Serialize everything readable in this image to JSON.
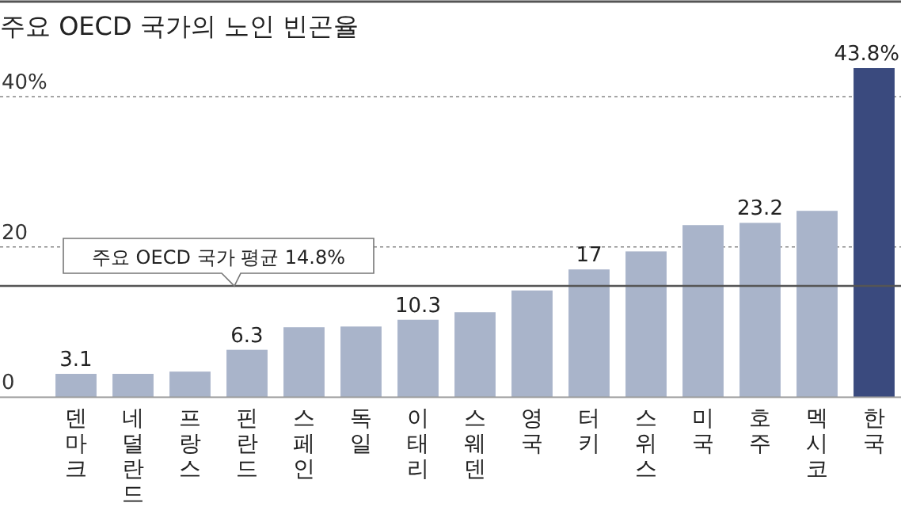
{
  "chart_data": {
    "type": "bar",
    "title": "주요 OECD 국가의 노인 빈곤율",
    "categories": [
      "덴마크",
      "네덜란드",
      "프랑스",
      "핀란드",
      "스페인",
      "독일",
      "이태리",
      "스웨덴",
      "영국",
      "터키",
      "스위스",
      "미국",
      "호주",
      "멕시코",
      "한국"
    ],
    "values": [
      3.1,
      3.1,
      3.4,
      6.3,
      9.3,
      9.4,
      10.3,
      11.3,
      14.2,
      17,
      19.4,
      22.9,
      23.2,
      24.8,
      43.8
    ],
    "value_labels": [
      "3.1",
      null,
      null,
      "6.3",
      null,
      null,
      "10.3",
      null,
      null,
      "17",
      null,
      null,
      "23.2",
      null,
      "43.8%"
    ],
    "colors": [
      "#a9b4ca",
      "#a9b4ca",
      "#a9b4ca",
      "#a9b4ca",
      "#a9b4ca",
      "#a9b4ca",
      "#a9b4ca",
      "#a9b4ca",
      "#a9b4ca",
      "#a9b4ca",
      "#a9b4ca",
      "#a9b4ca",
      "#a9b4ca",
      "#a9b4ca",
      "#3a4a7e"
    ],
    "ylim": [
      0,
      43.8
    ],
    "yticks": [
      0,
      20,
      {
        "value": 40,
        "label": "40%"
      }
    ],
    "grid": "y",
    "ref_lines": [
      {
        "axis": "y",
        "value": 14.8,
        "label": "주요 OECD 국가 평균 14.8%",
        "color": "#555555"
      }
    ]
  }
}
